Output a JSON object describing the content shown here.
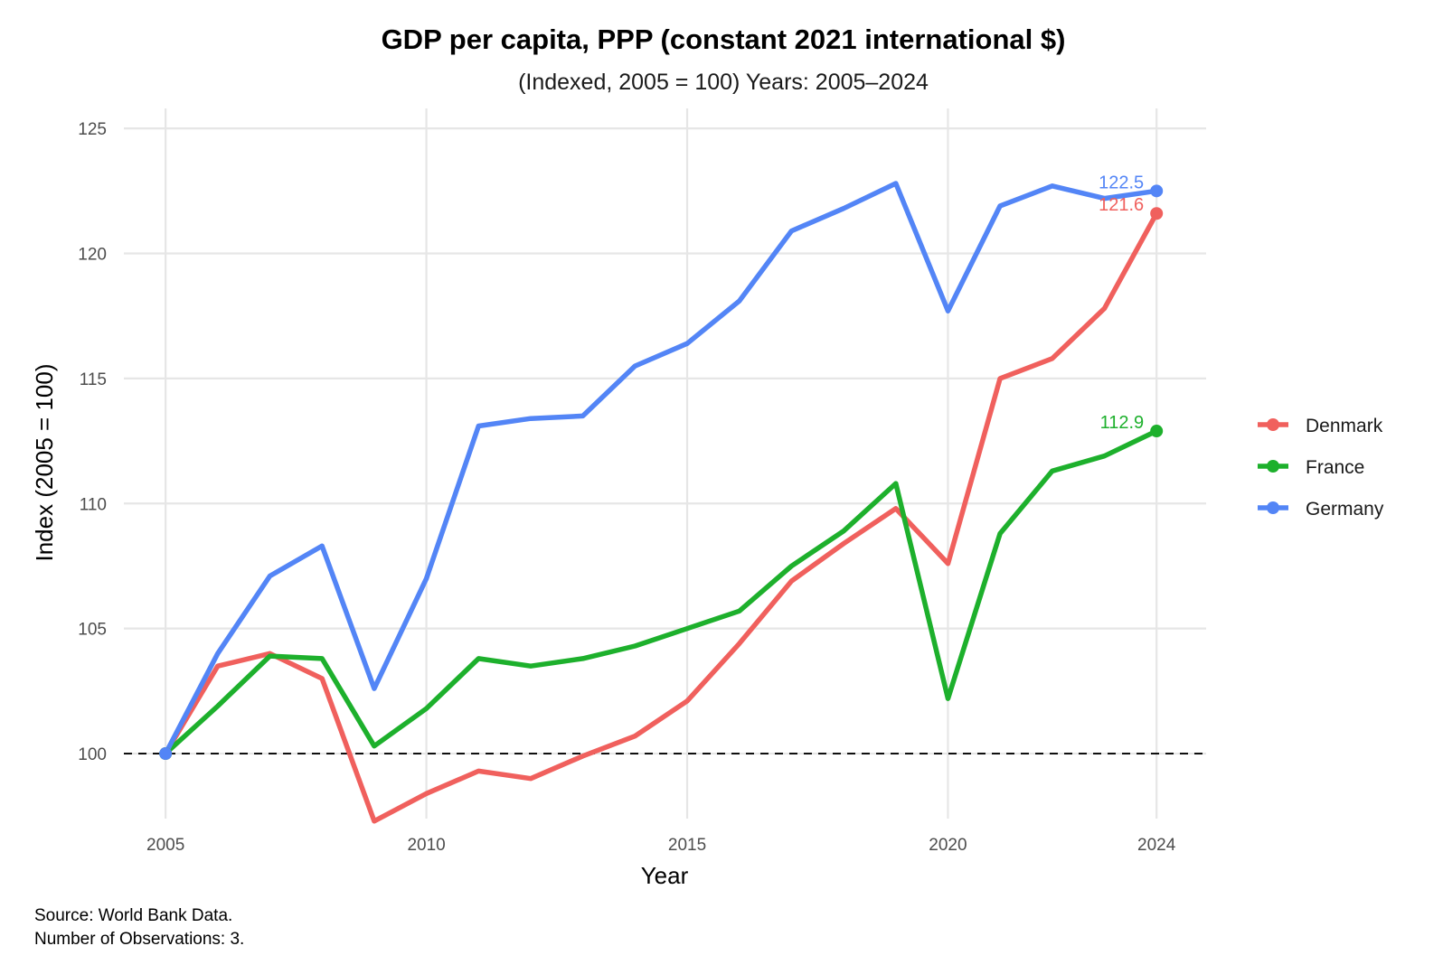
{
  "chart_data": {
    "type": "line",
    "title": "GDP per capita, PPP (constant 2021 international $)",
    "subtitle": "(Indexed, 2005 = 100) Years: 2005–2024",
    "xlabel": "Year",
    "ylabel": "Index (2005 = 100)",
    "xlim": [
      2004.2,
      2024.95
    ],
    "ylim": [
      97.4,
      125.8
    ],
    "x_ticks": [
      2005,
      2010,
      2015,
      2020,
      2024
    ],
    "y_ticks": [
      100,
      105,
      110,
      115,
      120,
      125
    ],
    "reference_line": 100,
    "grid": true,
    "legend_position": "right",
    "x": [
      2005,
      2006,
      2007,
      2008,
      2009,
      2010,
      2011,
      2012,
      2013,
      2014,
      2015,
      2016,
      2017,
      2018,
      2019,
      2020,
      2021,
      2022,
      2023,
      2024
    ],
    "series": [
      {
        "name": "Denmark",
        "color": "#F0605D",
        "values": [
          100.0,
          103.5,
          104.0,
          103.0,
          97.3,
          98.4,
          99.3,
          99.0,
          99.9,
          100.7,
          102.1,
          104.4,
          106.9,
          108.4,
          109.8,
          107.6,
          115.0,
          115.8,
          117.8,
          121.6
        ],
        "end_label": "121.6"
      },
      {
        "name": "France",
        "color": "#1DB02C",
        "values": [
          100.0,
          101.9,
          103.9,
          103.8,
          100.3,
          101.8,
          103.8,
          103.5,
          103.8,
          104.3,
          105.0,
          105.7,
          107.5,
          108.9,
          110.8,
          102.2,
          108.8,
          111.3,
          111.9,
          112.9
        ],
        "end_label": "112.9"
      },
      {
        "name": "Germany",
        "color": "#5385F6",
        "values": [
          100.0,
          104.0,
          107.1,
          108.3,
          102.6,
          107.0,
          113.1,
          113.4,
          113.5,
          115.5,
          116.4,
          118.1,
          120.9,
          121.8,
          122.8,
          117.7,
          121.9,
          122.7,
          122.2,
          122.5
        ],
        "end_label": "122.5"
      }
    ],
    "caption_lines": [
      "Source: World Bank Data.",
      "Number of Observations: 3."
    ]
  }
}
